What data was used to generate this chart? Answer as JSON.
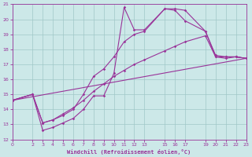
{
  "xlabel": "Windchill (Refroidissement éolien,°C)",
  "xlim": [
    0,
    23
  ],
  "ylim": [
    12,
    21
  ],
  "yticks": [
    12,
    13,
    14,
    15,
    16,
    17,
    18,
    19,
    20,
    21
  ],
  "xticks": [
    0,
    2,
    3,
    4,
    5,
    6,
    7,
    8,
    9,
    10,
    11,
    12,
    13,
    15,
    16,
    17,
    19,
    20,
    21,
    22,
    23
  ],
  "bg_color": "#cce8e8",
  "grid_color": "#a0c8c8",
  "line_color": "#993399",
  "line1_x": [
    0,
    2,
    3,
    4,
    5,
    6,
    7,
    8,
    9,
    10,
    11,
    12,
    13,
    15,
    16,
    17,
    19,
    20,
    21,
    22,
    23
  ],
  "line1_y": [
    14.6,
    15.0,
    12.6,
    12.8,
    13.1,
    13.4,
    14.0,
    14.9,
    14.9,
    16.4,
    20.8,
    19.3,
    19.3,
    20.7,
    20.6,
    19.9,
    19.2,
    17.5,
    17.4,
    17.5,
    17.4
  ],
  "line2_x": [
    0,
    2,
    3,
    4,
    5,
    6,
    7,
    8,
    9,
    10,
    11,
    12,
    13,
    15,
    16,
    17,
    19,
    20,
    21,
    22,
    23
  ],
  "line2_y": [
    14.6,
    15.0,
    13.1,
    13.3,
    13.6,
    14.0,
    15.0,
    16.2,
    16.7,
    17.5,
    18.5,
    19.0,
    19.2,
    20.7,
    20.7,
    20.6,
    19.2,
    17.6,
    17.5,
    17.5,
    17.4
  ],
  "line3_x": [
    0,
    2,
    3,
    4,
    5,
    6,
    7,
    8,
    9,
    10,
    11,
    12,
    13,
    15,
    16,
    17,
    19,
    20,
    21,
    22,
    23
  ],
  "line3_y": [
    14.6,
    15.0,
    13.1,
    13.3,
    13.7,
    14.1,
    14.6,
    15.2,
    15.7,
    16.2,
    16.6,
    17.0,
    17.3,
    17.9,
    18.2,
    18.5,
    18.9,
    17.5,
    17.5,
    17.5,
    17.4
  ],
  "line4_x": [
    0,
    23
  ],
  "line4_y": [
    14.6,
    17.4
  ]
}
